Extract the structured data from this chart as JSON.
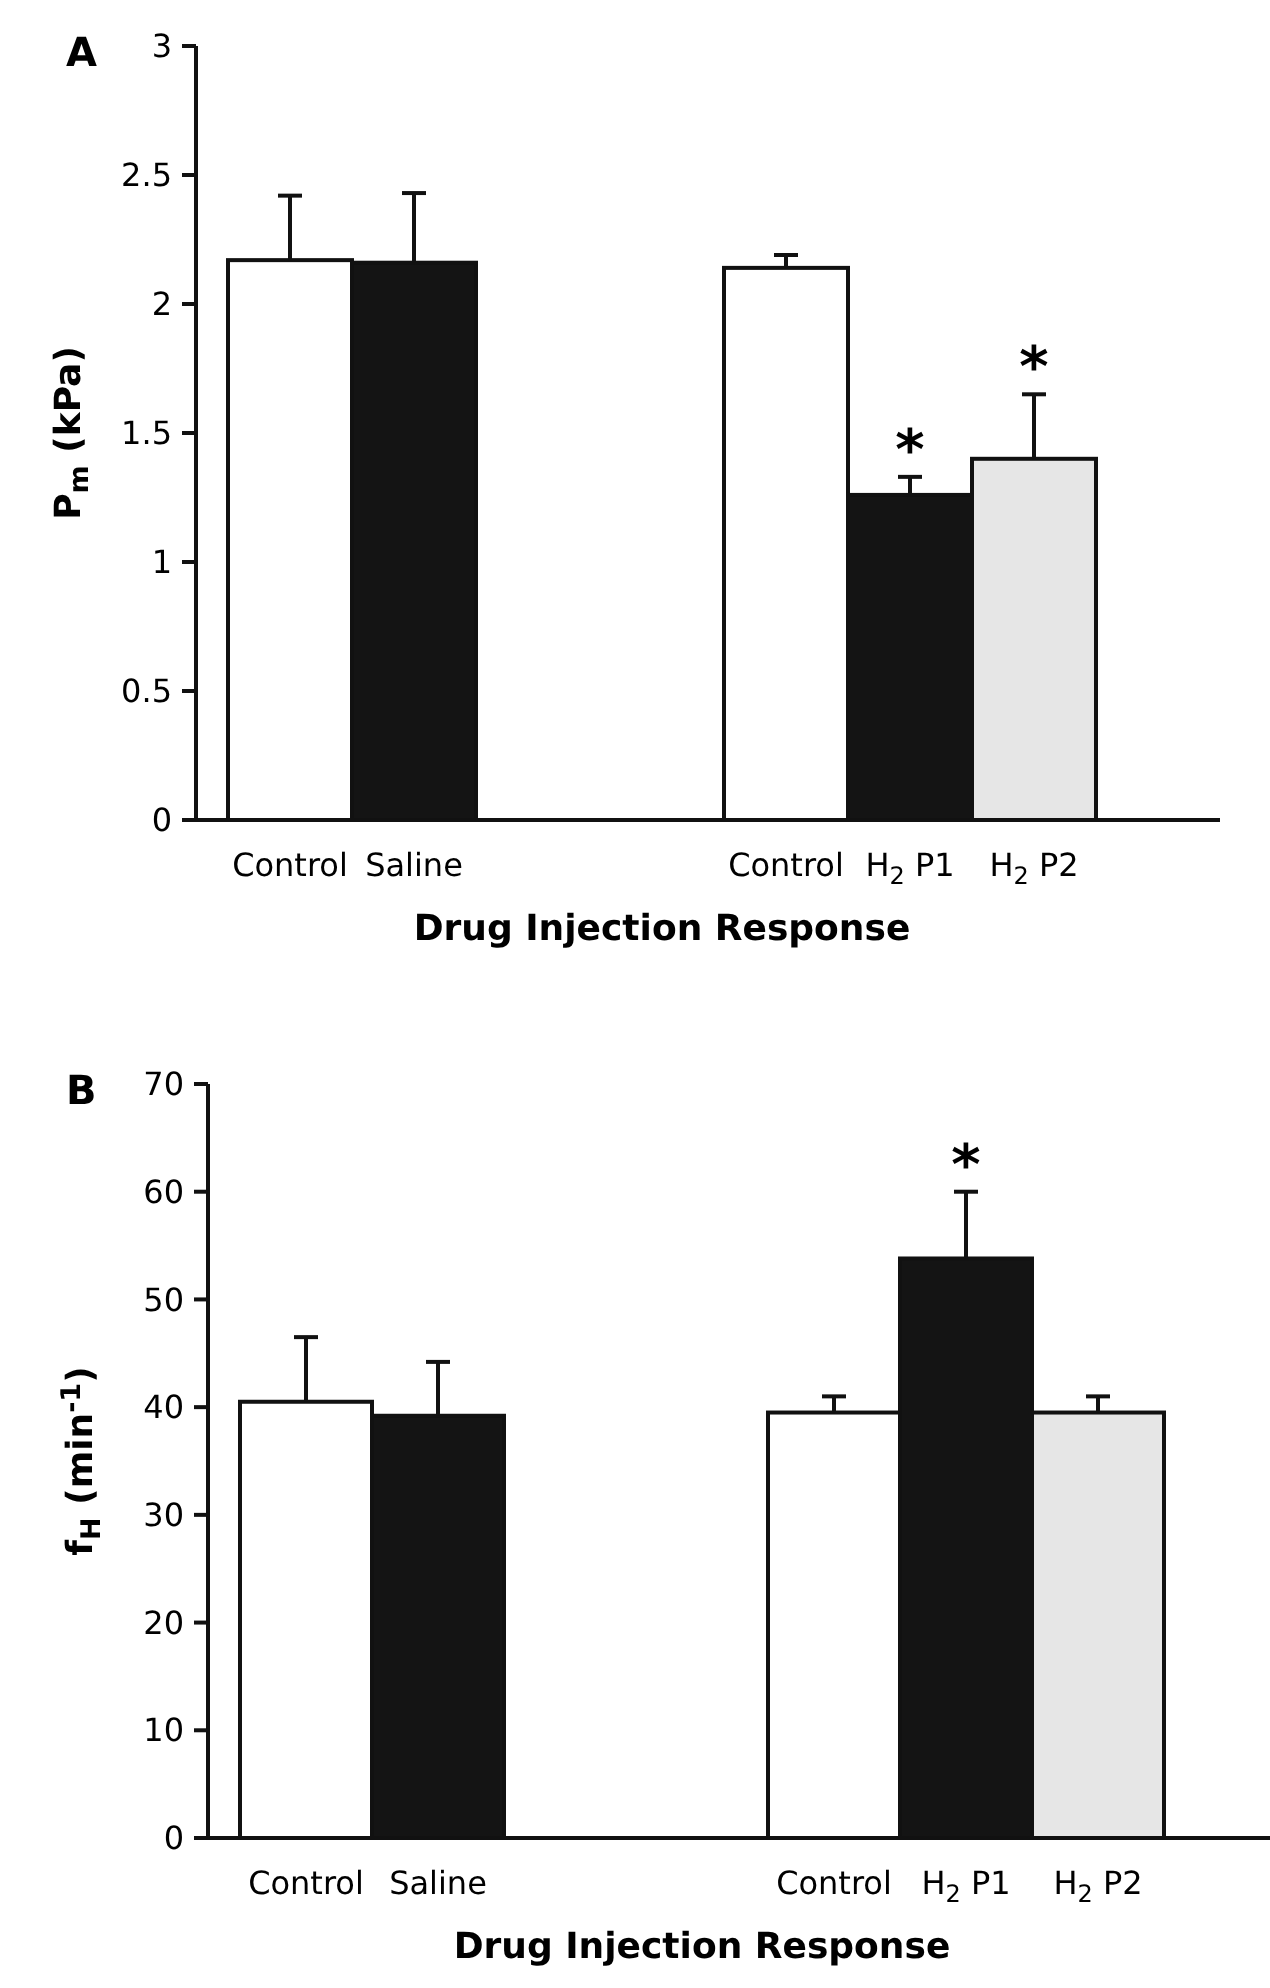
{
  "chart_data": [
    {
      "type": "bar",
      "title": "A",
      "ylabel": "P$_{m}$ (kPa)",
      "xlabel": "Drug Injection Response",
      "categories": [
        "Control",
        "Saline",
        null,
        null,
        "Control",
        "H$_{2}$ P1",
        "H$_{2}$ P2"
      ],
      "values": [
        2.17,
        2.16,
        null,
        null,
        2.14,
        1.26,
        1.4
      ],
      "errors": [
        [
          2.17,
          2.42
        ],
        [
          2.16,
          2.43
        ],
        null,
        null,
        [
          2.14,
          2.19
        ],
        [
          1.26,
          1.33
        ],
        [
          1.4,
          1.65
        ]
      ],
      "colors": [
        "#ffffff",
        "#141414",
        null,
        null,
        "#ffffff",
        "#141414",
        "#e6e6e6"
      ],
      "ylim": [
        0,
        3
      ],
      "yticks": [
        0,
        0.5,
        1,
        1.5,
        2,
        2.5,
        3
      ],
      "grid": false,
      "annotations": [
        {
          "text": "*",
          "x": "H$_{2}$ P1",
          "y": 1.26
        },
        {
          "text": "*",
          "x": "H$_{2}$ P2",
          "y": 1.4
        }
      ]
    },
    {
      "type": "bar",
      "title": "B",
      "ylabel": "f$_{H}$ (min$^{-1}$)",
      "xlabel": "Drug Injection Response",
      "categories": [
        "Control",
        "Saline",
        null,
        null,
        "Control",
        "H$_{2}$ P1",
        "H$_{2}$ P2"
      ],
      "values": [
        40.5,
        39.2,
        null,
        null,
        39.5,
        53.8,
        39.5
      ],
      "errors": [
        [
          40.5,
          46.5
        ],
        [
          39.2,
          44.2
        ],
        null,
        null,
        [
          39.5,
          41
        ],
        [
          53.8,
          60
        ],
        [
          39.5,
          41
        ]
      ],
      "colors": [
        "#ffffff",
        "#141414",
        null,
        null,
        "#ffffff",
        "#141414",
        "#e6e6e6"
      ],
      "ylim": [
        0,
        70
      ],
      "yticks": [
        0,
        10,
        20,
        30,
        40,
        50,
        60,
        70
      ],
      "grid": false,
      "annotations": [
        {
          "text": "*",
          "x": "H$_{2}$ P1",
          "y": 53.8
        }
      ]
    }
  ]
}
